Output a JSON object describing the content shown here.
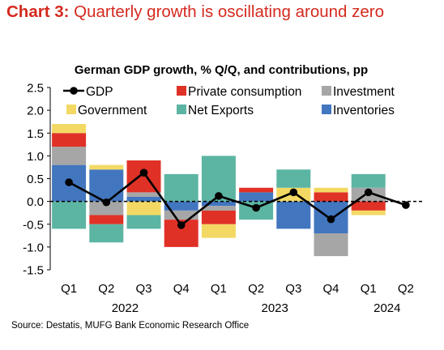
{
  "heading": {
    "lead": "Chart 3:",
    "rest": " Quarterly growth is oscillating around zero"
  },
  "source": "Source: Destatis, MUFG Bank Economic Research Office",
  "colors": {
    "private_consumption": "#e03127",
    "investment": "#a6a6a6",
    "government": "#f3d964",
    "net_exports": "#5cb5a3",
    "inventories": "#4276bf",
    "gdp": "#000000"
  },
  "chart_data": {
    "type": "bar",
    "stacked": true,
    "title": "German GDP growth, % Q/Q, and contributions, pp",
    "ylim": [
      -1.5,
      2.5
    ],
    "yticks": [
      "2.5",
      "2.0",
      "1.5",
      "1.0",
      "0.5",
      "0.0",
      "-0.5",
      "-1.0",
      "-1.5"
    ],
    "ytick_values": [
      2.5,
      2.0,
      1.5,
      1.0,
      0.5,
      0.0,
      -0.5,
      -1.0,
      -1.5
    ],
    "categories": [
      "Q1",
      "Q2",
      "Q3",
      "Q4",
      "Q1",
      "Q2",
      "Q3",
      "Q4",
      "Q1",
      "Q2"
    ],
    "years": [
      {
        "label": "2022",
        "from": 0,
        "to": 3
      },
      {
        "label": "2023",
        "from": 4,
        "to": 7
      },
      {
        "label": "2024",
        "from": 8,
        "to": 9
      }
    ],
    "legend": [
      {
        "name": "GDP",
        "key": "gdp",
        "kind": "line"
      },
      {
        "name": "Private consumption",
        "key": "private_consumption",
        "kind": "bar"
      },
      {
        "name": "Investment",
        "key": "investment",
        "kind": "bar"
      },
      {
        "name": "Government",
        "key": "government",
        "kind": "bar"
      },
      {
        "name": "Net Exports",
        "key": "net_exports",
        "kind": "bar"
      },
      {
        "name": "Inventories",
        "key": "inventories",
        "kind": "bar"
      }
    ],
    "series": [
      {
        "name": "Inventories",
        "key": "inventories",
        "values": [
          0.8,
          0.7,
          0.1,
          -0.2,
          -0.1,
          0.2,
          -0.6,
          -0.7,
          0.0,
          0.0
        ]
      },
      {
        "name": "Investment",
        "key": "investment",
        "values": [
          0.4,
          -0.3,
          0.1,
          -0.2,
          -0.1,
          0.0,
          0.0,
          -0.5,
          0.3,
          0.0
        ]
      },
      {
        "name": "Private consumption",
        "key": "private_consumption",
        "values": [
          0.3,
          -0.2,
          0.7,
          -0.6,
          -0.3,
          0.1,
          0.0,
          0.2,
          -0.2,
          0.0
        ]
      },
      {
        "name": "Government",
        "key": "government",
        "values": [
          0.2,
          0.1,
          -0.3,
          0.0,
          -0.3,
          0.0,
          0.3,
          0.1,
          -0.1,
          0.0
        ]
      },
      {
        "name": "Net Exports",
        "key": "net_exports",
        "values": [
          -0.6,
          -0.4,
          -0.3,
          0.6,
          1.0,
          -0.4,
          0.4,
          0.0,
          0.3,
          0.0
        ]
      }
    ],
    "gdp": {
      "name": "GDP",
      "values": [
        0.42,
        -0.02,
        0.63,
        -0.52,
        0.12,
        -0.14,
        0.2,
        -0.39,
        0.2,
        -0.08
      ]
    }
  }
}
